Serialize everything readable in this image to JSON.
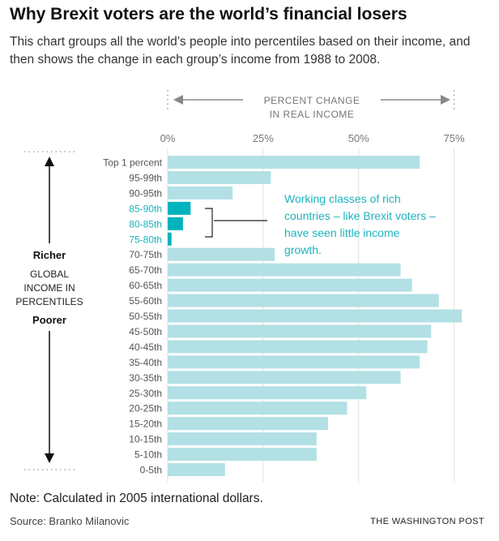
{
  "header": {
    "title": "Why Brexit voters are the world’s financial losers",
    "subtitle": "This chart groups all the world’s people into percentiles based on their income, and then shows the change in each group’s income from 1988 to 2008."
  },
  "axis_header": {
    "line1": "PERCENT CHANGE",
    "line2": "IN REAL INCOME"
  },
  "side_label": {
    "top": "Richer",
    "middle": [
      "GLOBAL",
      "INCOME IN",
      "PERCENTILES"
    ],
    "bottom": "Poorer"
  },
  "annotation": {
    "lines": [
      "Working classes of rich",
      "countries – like Brexit voters –",
      "have seen little income",
      "growth."
    ]
  },
  "footer": {
    "note": "Note: Calculated in 2005 international dollars.",
    "source": "Source: Branko Milanovic",
    "credit": "THE WASHINGTON POST"
  },
  "colors": {
    "bar": "#b2e0e4",
    "highlight_bar": "#00b3bd",
    "highlight_text": "#1bb3bf",
    "grid": "#e2e2e2",
    "axis_text": "#777777"
  },
  "chart_data": {
    "type": "bar",
    "orientation": "horizontal",
    "categories": [
      "Top 1 percent",
      "95-99th",
      "90-95th",
      "85-90th",
      "80-85th",
      "75-80th",
      "70-75th",
      "65-70th",
      "60-65th",
      "55-60th",
      "50-55th",
      "45-50th",
      "40-45th",
      "35-40th",
      "30-35th",
      "25-30th",
      "20-25th",
      "15-20th",
      "10-15th",
      "5-10th",
      "0-5th"
    ],
    "values": [
      66,
      27,
      17,
      6,
      4,
      1,
      28,
      61,
      64,
      71,
      77,
      69,
      68,
      66,
      61,
      52,
      47,
      42,
      39,
      39,
      15
    ],
    "highlighted": [
      "85-90th",
      "80-85th",
      "75-80th"
    ],
    "xticks": [
      0,
      25,
      50,
      75
    ],
    "xtick_labels": [
      "0%",
      "25%",
      "50%",
      "75%"
    ],
    "xlim": [
      0,
      77
    ],
    "grid": true
  }
}
